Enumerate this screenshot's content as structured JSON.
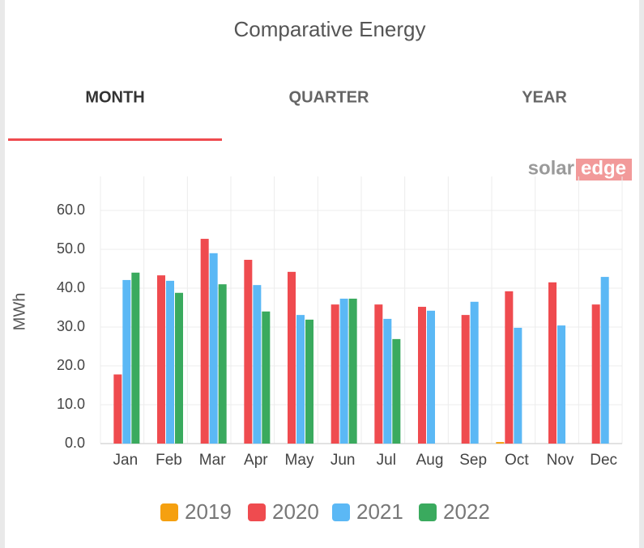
{
  "tabs": [
    "MONTH",
    "QUARTER",
    "YEAR"
  ],
  "logo": {
    "left": "solar",
    "right": "edge"
  },
  "chart_data": {
    "type": "bar",
    "title": "Comparative Energy",
    "y_label": "MWh",
    "categories": [
      "Jan",
      "Feb",
      "Mar",
      "Apr",
      "May",
      "Jun",
      "Jul",
      "Aug",
      "Sep",
      "Oct",
      "Nov",
      "Dec"
    ],
    "series": [
      {
        "name": "2019",
        "color": "#f5a010",
        "values": [
          null,
          null,
          null,
          null,
          null,
          null,
          null,
          null,
          null,
          0.4,
          null,
          null
        ]
      },
      {
        "name": "2020",
        "color": "#ef4b4f",
        "values": [
          17.8,
          43.3,
          52.7,
          47.3,
          44.2,
          35.8,
          35.8,
          35.2,
          33.1,
          39.2,
          41.5,
          35.8
        ]
      },
      {
        "name": "2021",
        "color": "#5bb8f5",
        "values": [
          42.1,
          41.9,
          49.0,
          40.8,
          33.1,
          37.3,
          32.1,
          34.2,
          36.5,
          29.8,
          30.4,
          42.9
        ]
      },
      {
        "name": "2022",
        "color": "#3aaa5e",
        "values": [
          44.0,
          38.8,
          41.0,
          34.0,
          31.9,
          37.3,
          26.9,
          null,
          null,
          null,
          null,
          null
        ]
      }
    ],
    "ylim": [
      0,
      68.75
    ],
    "yticks": [
      {
        "value": 0,
        "label": "0.0"
      },
      {
        "value": 10,
        "label": "10.0"
      },
      {
        "value": 20,
        "label": "20.0"
      },
      {
        "value": 30,
        "label": "30.0"
      },
      {
        "value": 40,
        "label": "40.0"
      },
      {
        "value": 50,
        "label": "50.0"
      },
      {
        "value": 60,
        "label": "60.0"
      }
    ],
    "grid": true
  }
}
